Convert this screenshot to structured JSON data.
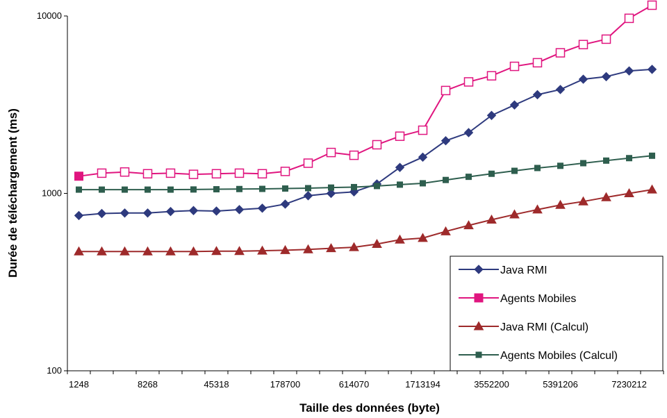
{
  "chart_data": {
    "type": "line",
    "xlabel": "Taille des données (byte)",
    "ylabel": "Durée de téléchargement (ms)",
    "yscale": "log",
    "ylim": [
      100,
      10000
    ],
    "yticks": [
      100,
      1000,
      10000
    ],
    "grid": false,
    "legend_position": "bottom-right",
    "x_tick_labels": [
      "1248",
      "8268",
      "45318",
      "178700",
      "614070",
      "1713194",
      "3552200",
      "5391206",
      "7230212"
    ],
    "x_label_step": 3,
    "point_count": 26,
    "series": [
      {
        "name": "Java RMI",
        "color": "#2E3A7E",
        "marker": "diamond",
        "values": [
          750,
          770,
          775,
          775,
          790,
          800,
          795,
          810,
          825,
          870,
          970,
          1000,
          1020,
          1130,
          1400,
          1600,
          1980,
          2200,
          2750,
          3150,
          3600,
          3850,
          4400,
          4550,
          4900,
          5000
        ]
      },
      {
        "name": "Agents Mobiles",
        "color": "#E0157F",
        "marker": "square",
        "values": [
          1250,
          1300,
          1320,
          1290,
          1300,
          1280,
          1290,
          1300,
          1290,
          1330,
          1480,
          1700,
          1640,
          1880,
          2100,
          2270,
          3800,
          4250,
          4600,
          5200,
          5450,
          6200,
          6900,
          7400,
          9700,
          11500
        ]
      },
      {
        "name": "Java RMI (Calcul)",
        "color": "#9E2A2B",
        "marker": "triangle",
        "values": [
          470,
          470,
          470,
          470,
          470,
          470,
          472,
          472,
          475,
          478,
          483,
          490,
          497,
          518,
          548,
          560,
          610,
          660,
          710,
          760,
          810,
          860,
          900,
          950,
          1000,
          1050
        ]
      },
      {
        "name": "Agents  Mobiles (Calcul)",
        "color": "#2E5E4E",
        "marker": "square-filled",
        "values": [
          1050,
          1050,
          1050,
          1050,
          1050,
          1052,
          1055,
          1058,
          1060,
          1065,
          1070,
          1078,
          1085,
          1100,
          1120,
          1140,
          1190,
          1240,
          1290,
          1340,
          1390,
          1430,
          1480,
          1530,
          1580,
          1630
        ]
      }
    ]
  }
}
